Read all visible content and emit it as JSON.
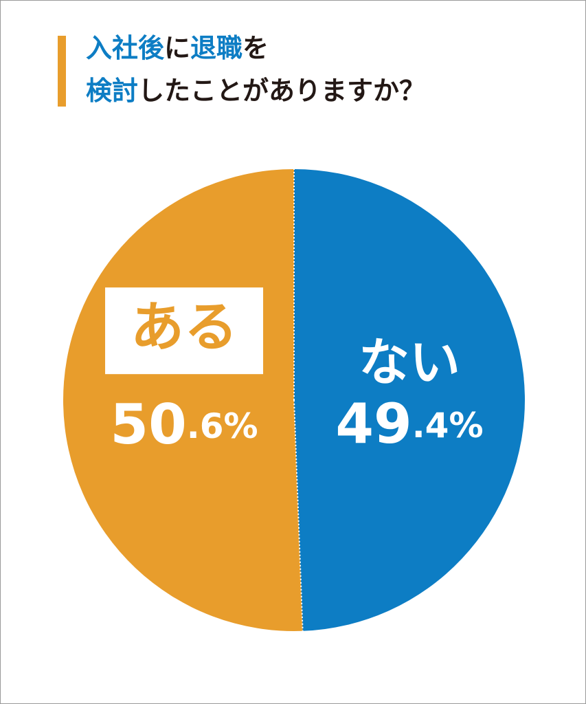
{
  "chart_data": {
    "type": "pie",
    "title": [
      [
        {
          "text": "入社後",
          "color": "#0d7dc4"
        },
        {
          "text": "に",
          "color": "#231815"
        },
        {
          "text": "退職",
          "color": "#0d7dc4"
        },
        {
          "text": "を",
          "color": "#231815"
        }
      ],
      [
        {
          "text": "検討",
          "color": "#0d7dc4"
        },
        {
          "text": "したことがありますか？",
          "color": "#231815"
        }
      ]
    ],
    "categories": [
      "ある",
      "ない"
    ],
    "values": [
      50.6,
      49.4
    ],
    "value_labels": [
      "50.6%",
      "49.4%"
    ],
    "colors": [
      "#e89d2c",
      "#0d7dc4"
    ],
    "direction": "counterclockwise"
  }
}
